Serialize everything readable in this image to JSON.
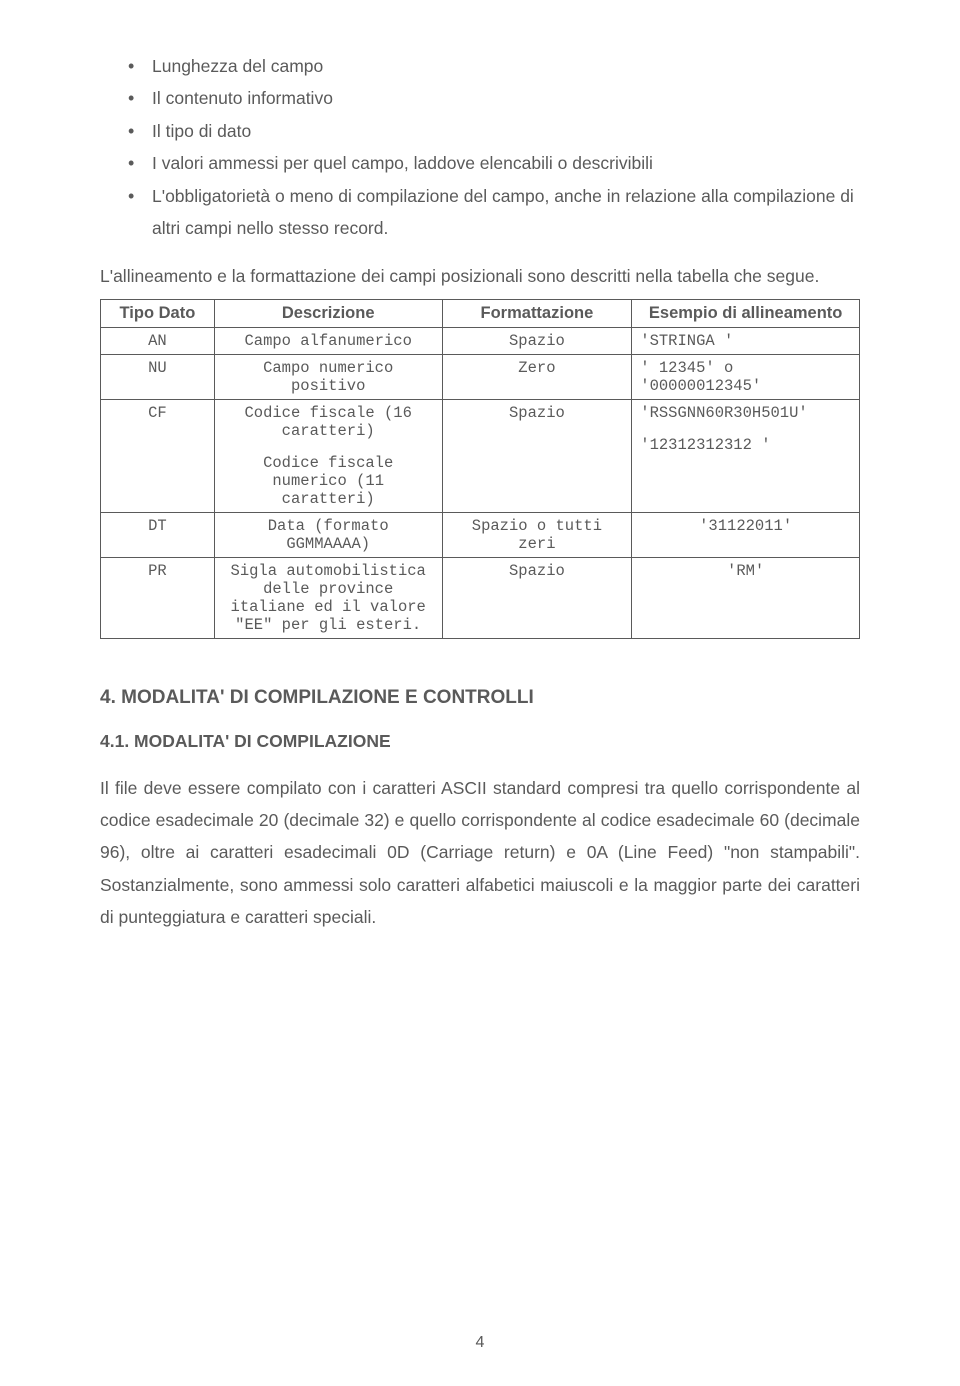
{
  "bullets": [
    "Lunghezza del campo",
    "Il contenuto informativo",
    "Il tipo di dato",
    "I valori ammessi per quel campo, laddove elencabili o descrivibili",
    "L'obbligatorietà o meno di compilazione del campo, anche in relazione alla compilazione di altri campi nello stesso record."
  ],
  "para1": "L'allineamento e la formattazione dei campi posizionali sono descritti nella tabella che segue.",
  "table": {
    "headers": [
      "Tipo Dato",
      "Descrizione",
      "Formattazione",
      "Esempio di allineamento"
    ],
    "rows": [
      {
        "c1": "AN",
        "c2": "Campo alfanumerico",
        "c3": "Spazio",
        "c4": "'STRINGA        '"
      },
      {
        "c1": "NU",
        "c2": "Campo numerico positivo",
        "c3": "Zero",
        "c4": "'      12345' o '00000012345'"
      },
      {
        "c1": "CF",
        "c2": "Codice fiscale (16 caratteri)",
        "c2b": "Codice fiscale numerico (11 caratteri)",
        "c3": "Spazio",
        "c4": "'RSSGNN60R30H501U'",
        "c4b": "'12312312312    '"
      },
      {
        "c1": "DT",
        "c2": "Data (formato GGMMAAAA)",
        "c3": "Spazio o tutti zeri",
        "c4": "'31122011'"
      },
      {
        "c1": "PR",
        "c2": "Sigla automobilistica delle province italiane ed il valore \"EE\" per gli esteri.",
        "c3": "Spazio",
        "c4": "'RM'"
      }
    ]
  },
  "section4": "4. MODALITA' DI COMPILAZIONE E CONTROLLI",
  "section41": "4.1. MODALITA' DI COMPILAZIONE",
  "para2": "Il file deve essere compilato con i caratteri ASCII standard compresi tra quello corrispondente al codice esadecimale 20 (decimale 32) e quello corrispondente al codice esadecimale 60 (decimale 96), oltre ai caratteri esadecimali 0D (Carriage return) e 0A (Line Feed) \"non stampabili\". Sostanzialmente, sono ammessi solo caratteri alfabetici maiuscoli e la maggior parte dei caratteri di punteggiatura e caratteri speciali.",
  "pagenum": "4"
}
